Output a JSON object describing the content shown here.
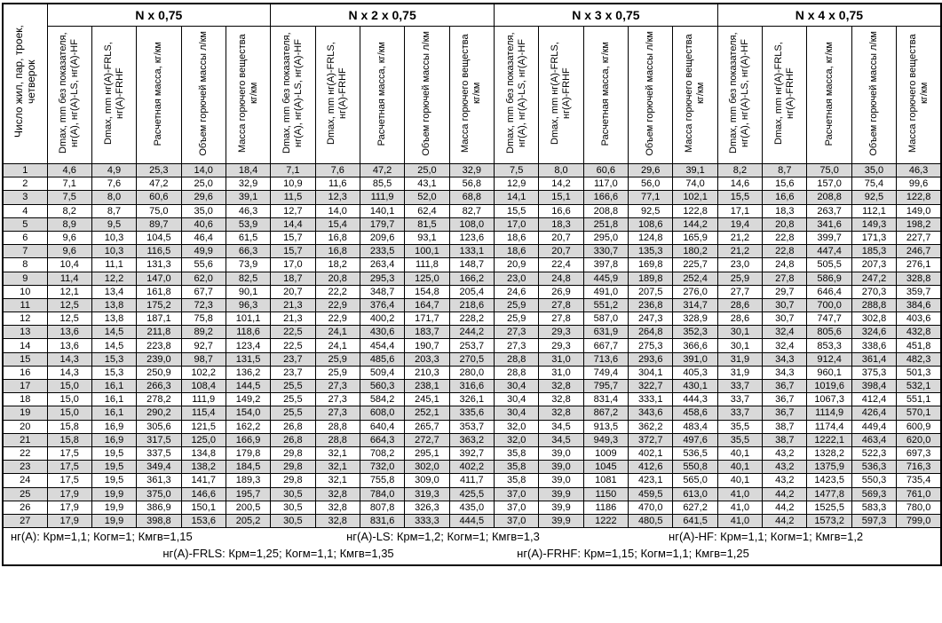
{
  "colors": {
    "row_stripe": "#d9d9d9",
    "border": "#000000",
    "background": "#ffffff"
  },
  "table": {
    "corner_header": "Число жил, пар, троек, четверок",
    "groups": [
      "N x 0,75",
      "N x 2 x 0,75",
      "N x 3 x 0,75",
      "N x 4 x 0,75"
    ],
    "sub_headers": [
      "Dmax, mm без показателя, нг(А), нг(А)-LS, нг(А)-HF",
      "Dmax, mm нг(А)-FRLS, нг(А)-FRHF",
      "Расчетная масса, кг/км",
      "Объем горючей массы л/км",
      "Масса горючего вещества кг/км"
    ],
    "rows": [
      [
        "1",
        "4,6",
        "4,9",
        "25,3",
        "14,0",
        "18,4",
        "7,1",
        "7,6",
        "47,2",
        "25,0",
        "32,9",
        "7,5",
        "8,0",
        "60,6",
        "29,6",
        "39,1",
        "8,2",
        "8,7",
        "75,0",
        "35,0",
        "46,3"
      ],
      [
        "2",
        "7,1",
        "7,6",
        "47,2",
        "25,0",
        "32,9",
        "10,9",
        "11,6",
        "85,5",
        "43,1",
        "56,8",
        "12,9",
        "14,2",
        "117,0",
        "56,0",
        "74,0",
        "14,6",
        "15,6",
        "157,0",
        "75,4",
        "99,6"
      ],
      [
        "3",
        "7,5",
        "8,0",
        "60,6",
        "29,6",
        "39,1",
        "11,5",
        "12,3",
        "111,9",
        "52,0",
        "68,8",
        "14,1",
        "15,1",
        "166,6",
        "77,1",
        "102,1",
        "15,5",
        "16,6",
        "208,8",
        "92,5",
        "122,8"
      ],
      [
        "4",
        "8,2",
        "8,7",
        "75,0",
        "35,0",
        "46,3",
        "12,7",
        "14,0",
        "140,1",
        "62,4",
        "82,7",
        "15,5",
        "16,6",
        "208,8",
        "92,5",
        "122,8",
        "17,1",
        "18,3",
        "263,7",
        "112,1",
        "149,0"
      ],
      [
        "5",
        "8,9",
        "9,5",
        "89,7",
        "40,6",
        "53,9",
        "14,4",
        "15,4",
        "179,7",
        "81,5",
        "108,0",
        "17,0",
        "18,3",
        "251,8",
        "108,6",
        "144,2",
        "19,4",
        "20,8",
        "341,6",
        "149,3",
        "198,2"
      ],
      [
        "6",
        "9,6",
        "10,3",
        "104,5",
        "46,4",
        "61,5",
        "15,7",
        "16,8",
        "209,6",
        "93,1",
        "123,6",
        "18,6",
        "20,7",
        "295,0",
        "124,8",
        "165,9",
        "21,2",
        "22,8",
        "399,7",
        "171,3",
        "227,7"
      ],
      [
        "7",
        "9,6",
        "10,3",
        "116,5",
        "49,9",
        "66,3",
        "15,7",
        "16,8",
        "233,5",
        "100,1",
        "133,1",
        "18,6",
        "20,7",
        "330,7",
        "135,3",
        "180,2",
        "21,2",
        "22,8",
        "447,4",
        "185,3",
        "246,7"
      ],
      [
        "8",
        "10,4",
        "11,1",
        "131,3",
        "55,6",
        "73,9",
        "17,0",
        "18,2",
        "263,4",
        "111,8",
        "148,7",
        "20,9",
        "22,4",
        "397,8",
        "169,8",
        "225,7",
        "23,0",
        "24,8",
        "505,5",
        "207,3",
        "276,1"
      ],
      [
        "9",
        "11,4",
        "12,2",
        "147,0",
        "62,0",
        "82,5",
        "18,7",
        "20,8",
        "295,3",
        "125,0",
        "166,2",
        "23,0",
        "24,8",
        "445,9",
        "189,8",
        "252,4",
        "25,9",
        "27,8",
        "586,9",
        "247,2",
        "328,8"
      ],
      [
        "10",
        "12,1",
        "13,4",
        "161,8",
        "67,7",
        "90,1",
        "20,7",
        "22,2",
        "348,7",
        "154,8",
        "205,4",
        "24,6",
        "26,9",
        "491,0",
        "207,5",
        "276,0",
        "27,7",
        "29,7",
        "646,4",
        "270,3",
        "359,7"
      ],
      [
        "11",
        "12,5",
        "13,8",
        "175,2",
        "72,3",
        "96,3",
        "21,3",
        "22,9",
        "376,4",
        "164,7",
        "218,6",
        "25,9",
        "27,8",
        "551,2",
        "236,8",
        "314,7",
        "28,6",
        "30,7",
        "700,0",
        "288,8",
        "384,6"
      ],
      [
        "12",
        "12,5",
        "13,8",
        "187,1",
        "75,8",
        "101,1",
        "21,3",
        "22,9",
        "400,2",
        "171,7",
        "228,2",
        "25,9",
        "27,8",
        "587,0",
        "247,3",
        "328,9",
        "28,6",
        "30,7",
        "747,7",
        "302,8",
        "403,6"
      ],
      [
        "13",
        "13,6",
        "14,5",
        "211,8",
        "89,2",
        "118,6",
        "22,5",
        "24,1",
        "430,6",
        "183,7",
        "244,2",
        "27,3",
        "29,3",
        "631,9",
        "264,8",
        "352,3",
        "30,1",
        "32,4",
        "805,6",
        "324,6",
        "432,8"
      ],
      [
        "14",
        "13,6",
        "14,5",
        "223,8",
        "92,7",
        "123,4",
        "22,5",
        "24,1",
        "454,4",
        "190,7",
        "253,7",
        "27,3",
        "29,3",
        "667,7",
        "275,3",
        "366,6",
        "30,1",
        "32,4",
        "853,3",
        "338,6",
        "451,8"
      ],
      [
        "15",
        "14,3",
        "15,3",
        "239,0",
        "98,7",
        "131,5",
        "23,7",
        "25,9",
        "485,6",
        "203,3",
        "270,5",
        "28,8",
        "31,0",
        "713,6",
        "293,6",
        "391,0",
        "31,9",
        "34,3",
        "912,4",
        "361,4",
        "482,3"
      ],
      [
        "16",
        "14,3",
        "15,3",
        "250,9",
        "102,2",
        "136,2",
        "23,7",
        "25,9",
        "509,4",
        "210,3",
        "280,0",
        "28,8",
        "31,0",
        "749,4",
        "304,1",
        "405,3",
        "31,9",
        "34,3",
        "960,1",
        "375,3",
        "501,3"
      ],
      [
        "17",
        "15,0",
        "16,1",
        "266,3",
        "108,4",
        "144,5",
        "25,5",
        "27,3",
        "560,3",
        "238,1",
        "316,6",
        "30,4",
        "32,8",
        "795,7",
        "322,7",
        "430,1",
        "33,7",
        "36,7",
        "1019,6",
        "398,4",
        "532,1"
      ],
      [
        "18",
        "15,0",
        "16,1",
        "278,2",
        "111,9",
        "149,2",
        "25,5",
        "27,3",
        "584,2",
        "245,1",
        "326,1",
        "30,4",
        "32,8",
        "831,4",
        "333,1",
        "444,3",
        "33,7",
        "36,7",
        "1067,3",
        "412,4",
        "551,1"
      ],
      [
        "19",
        "15,0",
        "16,1",
        "290,2",
        "115,4",
        "154,0",
        "25,5",
        "27,3",
        "608,0",
        "252,1",
        "335,6",
        "30,4",
        "32,8",
        "867,2",
        "343,6",
        "458,6",
        "33,7",
        "36,7",
        "1114,9",
        "426,4",
        "570,1"
      ],
      [
        "20",
        "15,8",
        "16,9",
        "305,6",
        "121,5",
        "162,2",
        "26,8",
        "28,8",
        "640,4",
        "265,7",
        "353,7",
        "32,0",
        "34,5",
        "913,5",
        "362,2",
        "483,4",
        "35,5",
        "38,7",
        "1174,4",
        "449,4",
        "600,9"
      ],
      [
        "21",
        "15,8",
        "16,9",
        "317,5",
        "125,0",
        "166,9",
        "26,8",
        "28,8",
        "664,3",
        "272,7",
        "363,2",
        "32,0",
        "34,5",
        "949,3",
        "372,7",
        "497,6",
        "35,5",
        "38,7",
        "1222,1",
        "463,4",
        "620,0"
      ],
      [
        "22",
        "17,5",
        "19,5",
        "337,5",
        "134,8",
        "179,8",
        "29,8",
        "32,1",
        "708,2",
        "295,1",
        "392,7",
        "35,8",
        "39,0",
        "1009",
        "402,1",
        "536,5",
        "40,1",
        "43,2",
        "1328,2",
        "522,3",
        "697,3"
      ],
      [
        "23",
        "17,5",
        "19,5",
        "349,4",
        "138,2",
        "184,5",
        "29,8",
        "32,1",
        "732,0",
        "302,0",
        "402,2",
        "35,8",
        "39,0",
        "1045",
        "412,6",
        "550,8",
        "40,1",
        "43,2",
        "1375,9",
        "536,3",
        "716,3"
      ],
      [
        "24",
        "17,5",
        "19,5",
        "361,3",
        "141,7",
        "189,3",
        "29,8",
        "32,1",
        "755,8",
        "309,0",
        "411,7",
        "35,8",
        "39,0",
        "1081",
        "423,1",
        "565,0",
        "40,1",
        "43,2",
        "1423,5",
        "550,3",
        "735,4"
      ],
      [
        "25",
        "17,9",
        "19,9",
        "375,0",
        "146,6",
        "195,7",
        "30,5",
        "32,8",
        "784,0",
        "319,3",
        "425,5",
        "37,0",
        "39,9",
        "1150",
        "459,5",
        "613,0",
        "41,0",
        "44,2",
        "1477,8",
        "569,3",
        "761,0"
      ],
      [
        "26",
        "17,9",
        "19,9",
        "386,9",
        "150,1",
        "200,5",
        "30,5",
        "32,8",
        "807,8",
        "326,3",
        "435,0",
        "37,0",
        "39,9",
        "1186",
        "470,0",
        "627,2",
        "41,0",
        "44,2",
        "1525,5",
        "583,3",
        "780,0"
      ],
      [
        "27",
        "17,9",
        "19,9",
        "398,8",
        "153,6",
        "205,2",
        "30,5",
        "32,8",
        "831,6",
        "333,3",
        "444,5",
        "37,0",
        "39,9",
        "1222",
        "480,5",
        "641,5",
        "41,0",
        "44,2",
        "1573,2",
        "597,3",
        "799,0"
      ]
    ],
    "footnotes_line1": [
      "нг(А): Крм=1,1;  Когм=1;  Кмгв=1,15",
      "нг(А)-LS: Крм=1,2;  Когм=1;  Кмгв=1,3",
      "нг(А)-HF: Крм=1,1;  Когм=1;  Кмгв=1,2"
    ],
    "footnotes_line2": [
      "нг(А)-FRLS: Крм=1,25;  Когм=1,1;  Кмгв=1,35",
      "нг(А)-FRHF: Крм=1,15;  Когм=1,1;  Кмгв=1,25"
    ]
  }
}
